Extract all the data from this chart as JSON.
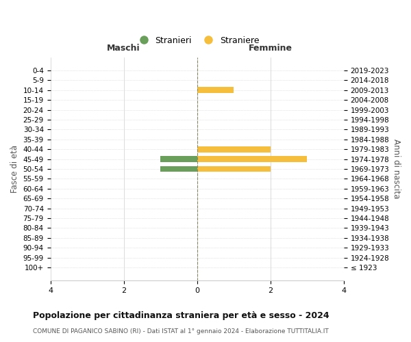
{
  "age_groups": [
    "100+",
    "95-99",
    "90-94",
    "85-89",
    "80-84",
    "75-79",
    "70-74",
    "65-69",
    "60-64",
    "55-59",
    "50-54",
    "45-49",
    "40-44",
    "35-39",
    "30-34",
    "25-29",
    "20-24",
    "15-19",
    "10-14",
    "5-9",
    "0-4"
  ],
  "birth_years": [
    "≤ 1923",
    "1924-1928",
    "1929-1933",
    "1934-1938",
    "1939-1943",
    "1944-1948",
    "1949-1953",
    "1954-1958",
    "1959-1963",
    "1964-1968",
    "1969-1973",
    "1974-1978",
    "1979-1983",
    "1984-1988",
    "1989-1993",
    "1994-1998",
    "1999-2003",
    "2004-2008",
    "2009-2013",
    "2014-2018",
    "2019-2023"
  ],
  "maschi": [
    0,
    0,
    0,
    0,
    0,
    0,
    0,
    0,
    0,
    0,
    1,
    1,
    0,
    0,
    0,
    0,
    0,
    0,
    0,
    0,
    0
  ],
  "femmine": [
    0,
    0,
    0,
    0,
    0,
    0,
    0,
    0,
    0,
    0,
    2,
    3,
    2,
    0,
    0,
    0,
    0,
    0,
    1,
    0,
    0
  ],
  "color_maschi": "#6a9e5b",
  "color_femmine": "#f5be3c",
  "title": "Popolazione per cittadinanza straniera per età e sesso - 2024",
  "subtitle": "COMUNE DI PAGANICO SABINO (RI) - Dati ISTAT al 1° gennaio 2024 - Elaborazione TUTTITALIA.IT",
  "xlabel_left": "Maschi",
  "xlabel_right": "Femmine",
  "ylabel_left": "Fasce di età",
  "ylabel_right": "Anni di nascita",
  "legend_stranieri": "Stranieri",
  "legend_straniere": "Straniere",
  "xlim": 4,
  "bg_color": "#ffffff",
  "grid_color": "#cccccc",
  "center_line_color": "#888866"
}
